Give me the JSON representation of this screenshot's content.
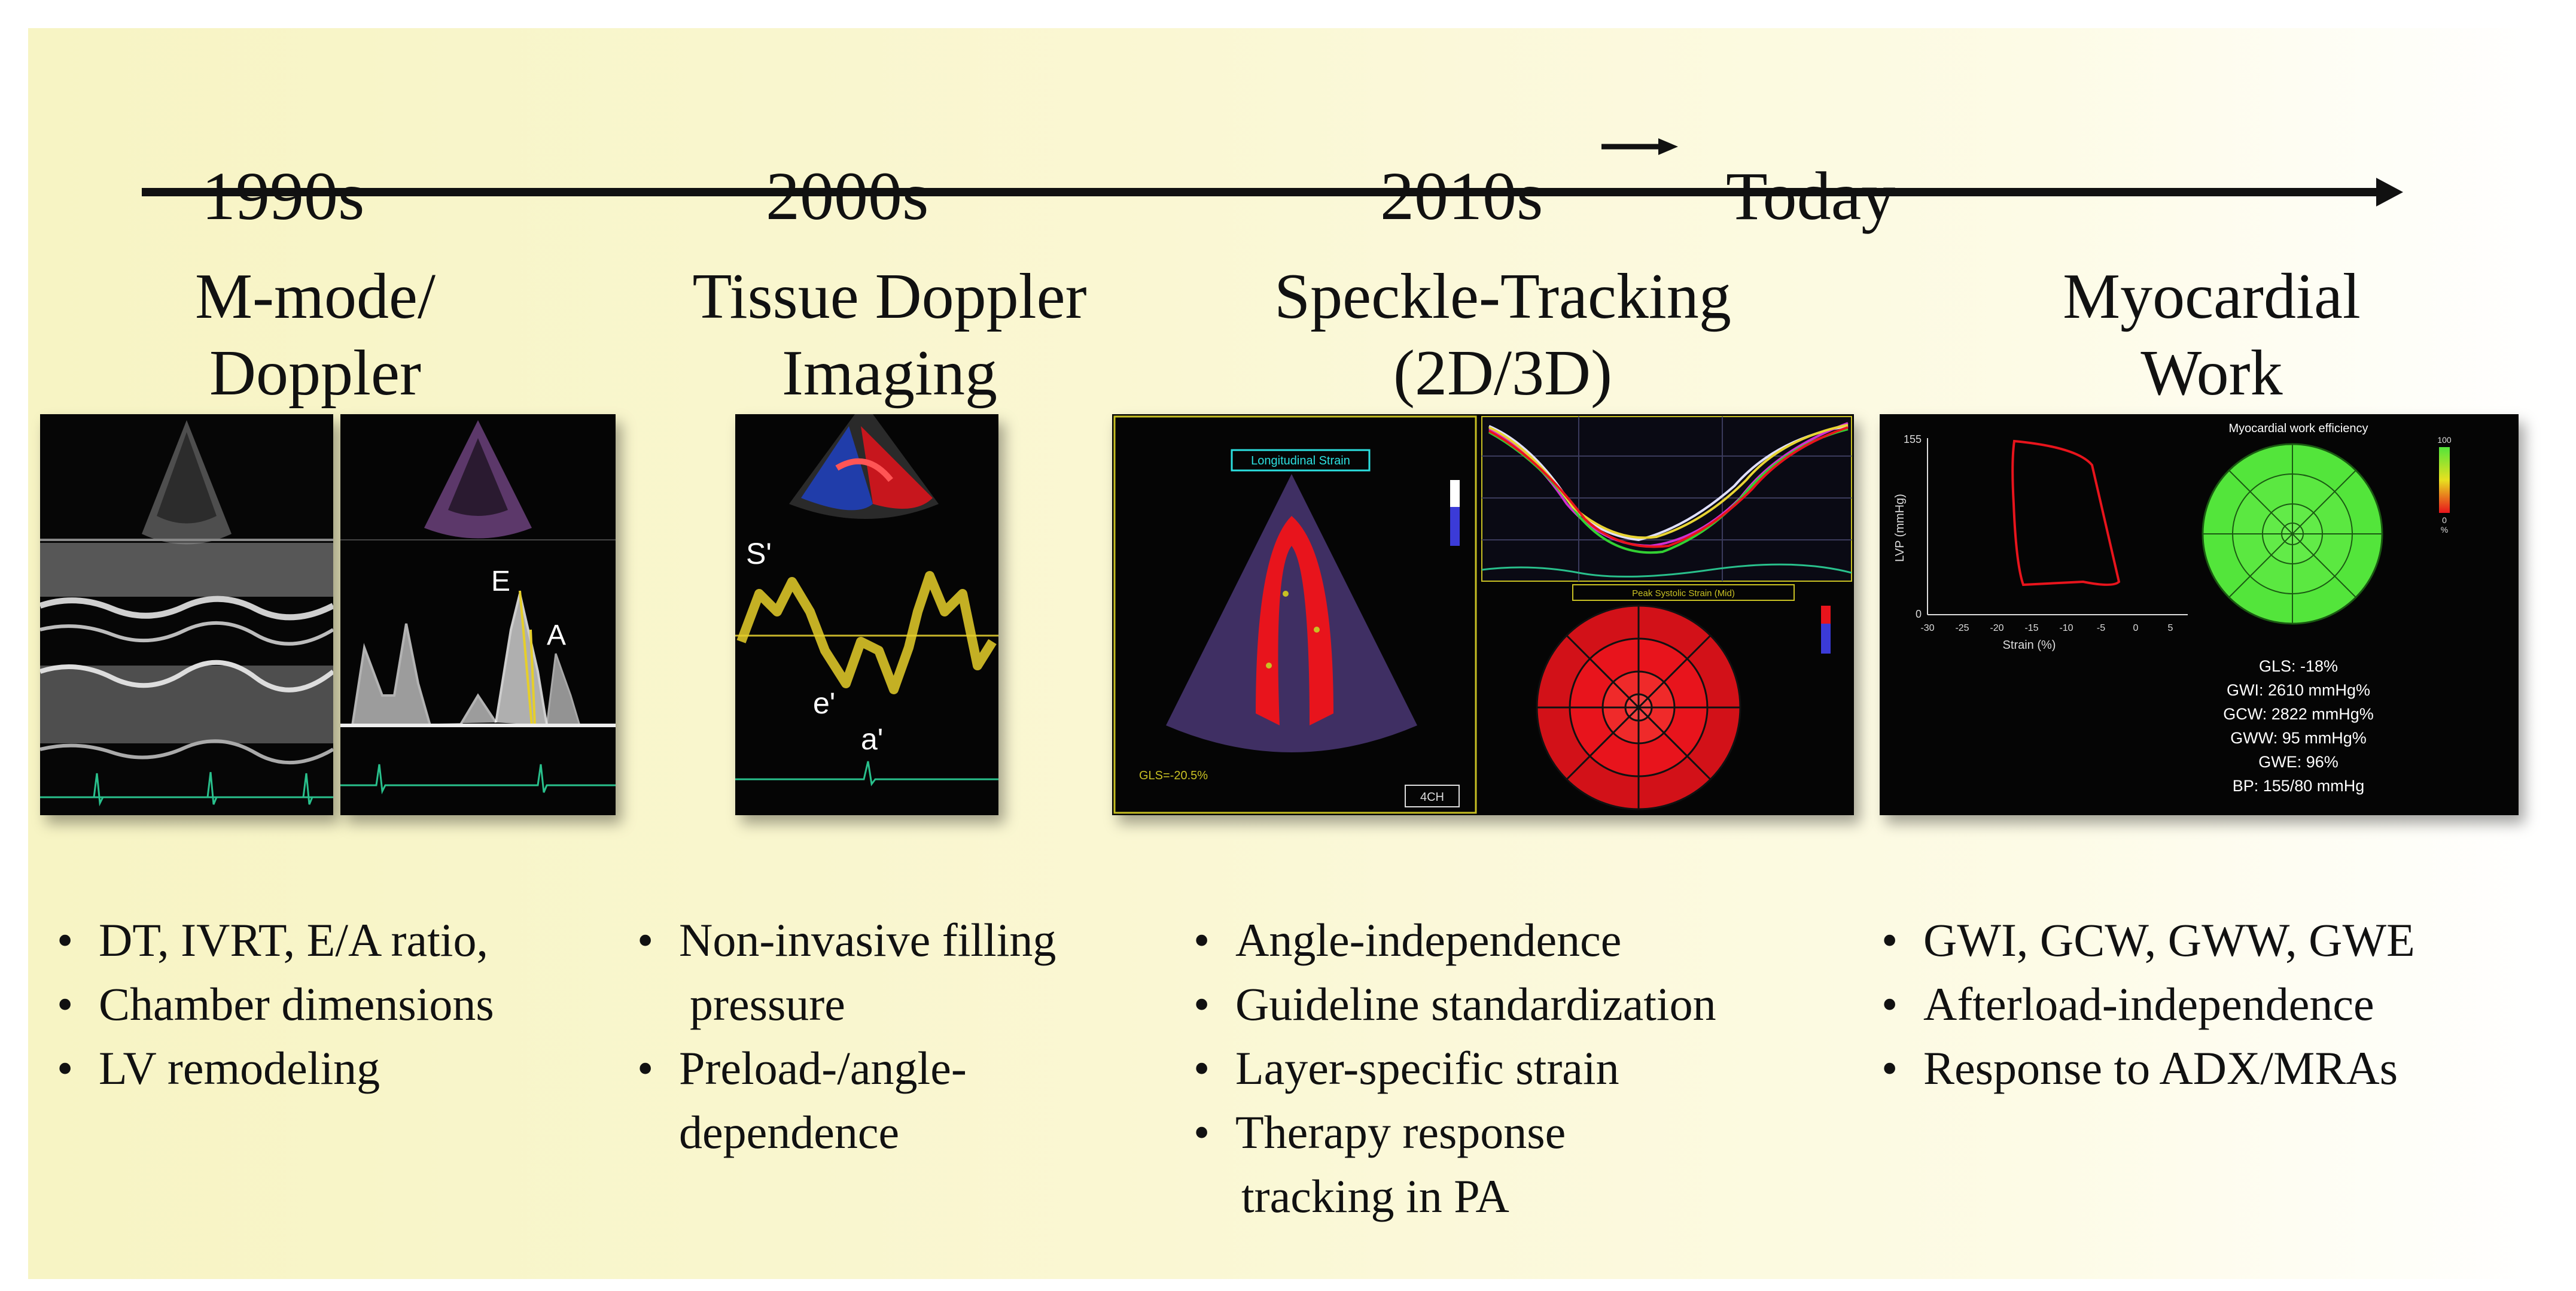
{
  "timeline": {
    "eras": [
      "1990s",
      "2000s",
      "2010s",
      "Today"
    ]
  },
  "columns": [
    {
      "title": [
        "M-mode/",
        "Doppler"
      ],
      "bullets": [
        "DT, IVRT, E/A ratio,",
        "Chamber dimensions",
        "LV remodeling"
      ],
      "panel_labels": {
        "E": "E",
        "A": "A"
      }
    },
    {
      "title": [
        "Tissue Doppler",
        "Imaging"
      ],
      "bullets": [
        "Non-invasive filling pressure",
        "Preload-/angle-dependence"
      ],
      "bullet_lines": [
        [
          "Non-invasive filling",
          "pressure"
        ],
        [
          "Preload-/angle-",
          "dependence"
        ]
      ],
      "panel_labels": {
        "s": "S'",
        "e": "e'",
        "a": "a'"
      }
    },
    {
      "title": [
        "Speckle-Tracking",
        "(2D/3D)"
      ],
      "bullets": [
        "Angle-independence",
        "Guideline standardization",
        "Layer-specific strain",
        "Therapy response tracking in PA"
      ],
      "bullet_lines": [
        [
          "Angle-independence"
        ],
        [
          "Guideline standardization"
        ],
        [
          "Layer-specific strain"
        ],
        [
          "Therapy response",
          "tracking in PA"
        ]
      ],
      "panel_labels": {
        "strain_box": "Longitudinal Strain",
        "gls": "GLS=-20.5%",
        "view": "4CH",
        "bullseye_title": "Peak Systolic Strain (Mid)"
      }
    },
    {
      "title": [
        "Myocardial",
        "Work"
      ],
      "bullets": [
        "GWI, GCW, GWW, GWE",
        "Afterload-independence",
        "Response to ADX/MRAs"
      ],
      "panel_labels": {
        "title": "Myocardial work efficiency",
        "ylabel": "LVP (mmHg)",
        "xlabel": "Strain (%)",
        "xticks": [
          "-30",
          "-25",
          "-20",
          "-15",
          "-10",
          "-5",
          "0",
          "5"
        ],
        "ytop": "155",
        "ybottom": "0",
        "scale_top": "100",
        "scale_bottom": "0",
        "scale_unit": "%",
        "stats": [
          "GLS: -18%",
          "GWI: 2610 mmHg%",
          "GCW: 2822 mmHg%",
          "GWW: 95 mmHg%",
          "GWE: 96%",
          "BP: 155/80 mmHg"
        ]
      }
    }
  ],
  "colors": {
    "background_left": "#f7f4c4",
    "background_right": "#ffffff",
    "arrow": "#111111",
    "doppler_trace": "#e6cf2a",
    "strain_red": "#e8141c",
    "work_green": "#53e53b"
  }
}
